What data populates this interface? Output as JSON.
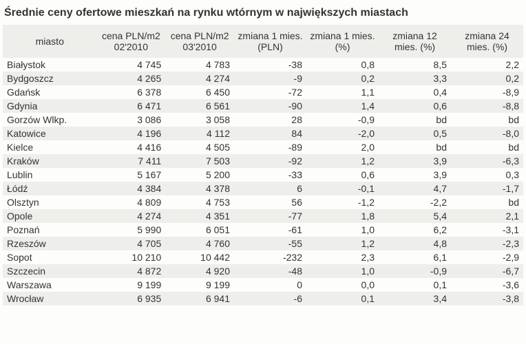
{
  "title": "Średnie ceny ofertowe mieszkań na rynku wtórnym w największych miastach",
  "table": {
    "columns": [
      "miasto",
      "cena PLN/m2 02'2010",
      "cena PLN/m2 03'2010",
      "zmiana 1 mies. (PLN)",
      "zmiana 1 mies. (%)",
      "zmiana 12 mies. (%)",
      "zmiana 24 mies. (%)"
    ],
    "rows": [
      [
        "Białystok",
        "4 745",
        "4 783",
        "-38",
        "0,8",
        "8,5",
        "2,2"
      ],
      [
        "Bydgoszcz",
        "4 265",
        "4 274",
        "-9",
        "0,2",
        "3,3",
        "0,2"
      ],
      [
        "Gdańsk",
        "6 378",
        "6 450",
        "-72",
        "1,1",
        "0,4",
        "-8,9"
      ],
      [
        "Gdynia",
        "6 471",
        "6 561",
        "-90",
        "1,4",
        "0,6",
        "-8,8"
      ],
      [
        "Gorzów Wlkp.",
        "3 086",
        "3 058",
        "28",
        "-0,9",
        "bd",
        "bd"
      ],
      [
        "Katowice",
        "4 196",
        "4 112",
        "84",
        "-2,0",
        "0,5",
        "-8,0"
      ],
      [
        "Kielce",
        "4 416",
        "4 505",
        "-89",
        "2,0",
        "bd",
        "bd"
      ],
      [
        "Kraków",
        "7 411",
        "7 503",
        "-92",
        "1,2",
        "3,9",
        "-6,3"
      ],
      [
        "Lublin",
        "5 167",
        "5 200",
        "-33",
        "0,6",
        "3,9",
        "0,3"
      ],
      [
        "Łódź",
        "4 384",
        "4 378",
        "6",
        "-0,1",
        "4,7",
        "-1,7"
      ],
      [
        "Olsztyn",
        "4 809",
        "4 753",
        "56",
        "-1,2",
        "-2,2",
        "bd"
      ],
      [
        "Opole",
        "4 274",
        "4 351",
        "-77",
        "1,8",
        "5,4",
        "2,1"
      ],
      [
        "Poznań",
        "5 990",
        "6 051",
        "-61",
        "1,0",
        "6,2",
        "-3,1"
      ],
      [
        "Rzeszów",
        "4 705",
        "4 760",
        "-55",
        "1,2",
        "4,8",
        "-2,3"
      ],
      [
        "Sopot",
        "10 210",
        "10 442",
        "-232",
        "2,3",
        "6,1",
        "-2,9"
      ],
      [
        "Szczecin",
        "4 872",
        "4 920",
        "-48",
        "1,0",
        "-0,9",
        "-6,7"
      ],
      [
        "Warszawa",
        "9 199",
        "9 199",
        "0",
        "0,0",
        "0,1",
        "-3,6"
      ],
      [
        "Wrocław",
        "6 935",
        "6 941",
        "-6",
        "0,1",
        "3,4",
        "-3,8"
      ]
    ],
    "header_bg": "#eeeeea",
    "row_odd_bg": "#fdfdfc",
    "row_even_bg": "#eeeeea",
    "text_color": "#333333",
    "font_size_title": 16,
    "font_size_body": 14,
    "col_align": [
      "left",
      "right",
      "right",
      "right",
      "right",
      "right",
      "right"
    ]
  }
}
